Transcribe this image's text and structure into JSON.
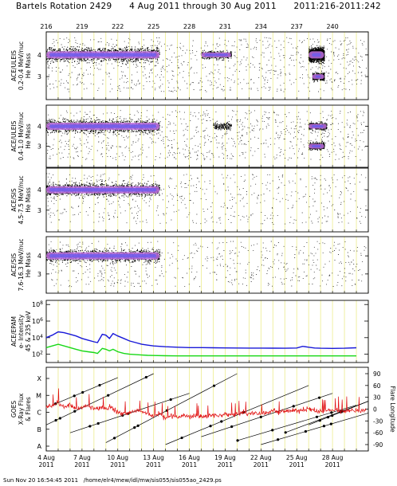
{
  "title": {
    "rotation": "Bartels Rotation 2429",
    "range": "4 Aug 2011 through 30 Aug 2011",
    "doy": "2011:216-2011:242"
  },
  "footer": {
    "timestamp": "Sun Nov 20 16:54:45 2011",
    "path": "/home/elr4/mew/idl/mw/sis055/sis055ao_2429.ps"
  },
  "chart_data": [
    {
      "type": "scatter",
      "panel": "ULEIS 0.2-0.4",
      "ylabel_lines": [
        "ACE/ULEIS",
        "0.2-0.4 MeV/nuc",
        "He Mass"
      ],
      "yticks": [
        "4",
        "3"
      ],
      "top_axis_ticks": [
        "216",
        "219",
        "222",
        "225",
        "228",
        "231",
        "234",
        "237",
        "240"
      ],
      "density_bands": [
        {
          "doy_start": 216.0,
          "doy_end": 225.5,
          "mass": 4.0,
          "level": "high"
        },
        {
          "doy_start": 229.0,
          "doy_end": 231.5,
          "mass": 4.0,
          "level": "medium"
        },
        {
          "doy_start": 238.0,
          "doy_end": 239.3,
          "mass": 4.0,
          "level": "high"
        },
        {
          "doy_start": 238.3,
          "doy_end": 239.3,
          "mass": 3.0,
          "level": "medium"
        }
      ]
    },
    {
      "type": "scatter",
      "panel": "ULEIS 0.4-1.0",
      "ylabel_lines": [
        "ACE/ULEIS",
        "0.4-1.0 MeV/nuc",
        "He Mass"
      ],
      "yticks": [
        "4",
        "3"
      ],
      "density_bands": [
        {
          "doy_start": 216.0,
          "doy_end": 225.5,
          "mass": 4.0,
          "level": "high"
        },
        {
          "doy_start": 230.0,
          "doy_end": 231.5,
          "mass": 4.0,
          "level": "low"
        },
        {
          "doy_start": 238.0,
          "doy_end": 239.5,
          "mass": 4.0,
          "level": "medium"
        },
        {
          "doy_start": 238.0,
          "doy_end": 239.3,
          "mass": 3.0,
          "level": "medium"
        }
      ]
    },
    {
      "type": "scatter",
      "panel": "SIS 4.5-7.5",
      "ylabel_lines": [
        "ACE/SIS",
        "4.5-7.5 MeV/nuc",
        "He Mass"
      ],
      "yticks": [
        "4",
        "3"
      ],
      "density_bands": [
        {
          "doy_start": 216.0,
          "doy_end": 225.5,
          "mass": 4.0,
          "level": "high"
        }
      ]
    },
    {
      "type": "scatter",
      "panel": "SIS 7.6-16.3",
      "ylabel_lines": [
        "ACE/SIS",
        "7.6-16.3 MeV/nuc",
        "He Mass"
      ],
      "yticks": [
        "4",
        "3"
      ],
      "density_bands": [
        {
          "doy_start": 216.0,
          "doy_end": 225.5,
          "mass": 4.0,
          "level": "high"
        }
      ]
    },
    {
      "type": "line",
      "panel": "EPAM",
      "ylabel_lines": [
        "ACE/EPAM",
        "e- Intensity",
        "45 & 235 keV"
      ],
      "yticks": [
        "10^8",
        "10^6",
        "10^4",
        "10^2"
      ],
      "ylim_log10": [
        1,
        8.5
      ],
      "series": [
        {
          "color": "#1818d8",
          "x": [
            216.0,
            216.5,
            217.0,
            217.5,
            218.0,
            218.5,
            219.0,
            219.5,
            220.0,
            220.3,
            220.7,
            221.0,
            221.3,
            221.6,
            222.0,
            222.5,
            223.0,
            223.5,
            224.0,
            224.5,
            225.0,
            225.5,
            226.0,
            227.0,
            228.0,
            229.0,
            230.0,
            231.0,
            232.0,
            233.0,
            234.0,
            235.0,
            236.0,
            237.0,
            237.5,
            238.0,
            238.5,
            239.0,
            240.0,
            241.0,
            242.0
          ],
          "y": [
            4.0,
            4.3,
            4.7,
            4.6,
            4.4,
            4.2,
            3.9,
            3.7,
            3.5,
            3.4,
            4.4,
            4.3,
            3.9,
            4.5,
            4.2,
            3.9,
            3.6,
            3.4,
            3.2,
            3.1,
            3.0,
            2.95,
            2.9,
            2.85,
            2.8,
            2.8,
            2.78,
            2.76,
            2.75,
            2.74,
            2.74,
            2.73,
            2.72,
            2.75,
            2.95,
            2.85,
            2.75,
            2.72,
            2.7,
            2.72,
            2.78
          ]
        },
        {
          "color": "#18d818",
          "x": [
            216.0,
            216.5,
            217.0,
            217.5,
            218.0,
            218.5,
            219.0,
            219.5,
            220.0,
            220.3,
            220.7,
            221.0,
            221.3,
            221.6,
            222.0,
            222.5,
            223.0,
            223.5,
            224.0,
            224.5,
            225.0,
            226.0,
            227.0,
            228.0,
            230.0,
            232.0,
            234.0,
            236.0,
            238.0,
            240.0,
            242.0
          ],
          "y": [
            2.8,
            3.0,
            3.2,
            3.0,
            2.8,
            2.6,
            2.4,
            2.3,
            2.2,
            2.1,
            2.7,
            2.6,
            2.4,
            2.6,
            2.3,
            2.1,
            2.0,
            1.95,
            1.9,
            1.87,
            1.85,
            1.82,
            1.8,
            1.8,
            1.8,
            1.8,
            1.8,
            1.8,
            1.8,
            1.8,
            1.8
          ]
        }
      ]
    },
    {
      "type": "line",
      "panel": "GOES X-ray flux & flare longitude",
      "ylabel_lines": [
        "GOES",
        "X-Ray Flux",
        "& Flares"
      ],
      "left_ticks": [
        "X",
        "M",
        "C",
        "B",
        "A"
      ],
      "right_label": "Flare Longitude",
      "right_ticks": [
        "90",
        "60",
        "30",
        "0",
        "-30",
        "-60",
        "-90"
      ],
      "series": [
        {
          "name": "xray-flux",
          "color": "#e01010",
          "x": [
            216,
            216.5,
            217,
            217.5,
            218,
            218.5,
            219,
            219.5,
            220,
            220.5,
            221,
            221.5,
            222,
            222.5,
            223,
            223.5,
            224,
            224.5,
            225,
            225.5,
            226,
            226.5,
            227,
            227.5,
            228,
            228.5,
            229,
            229.5,
            230,
            230.5,
            231,
            231.5,
            232,
            232.5,
            233,
            233.5,
            234,
            234.5,
            235,
            235.5,
            236,
            236.5,
            237,
            237.5,
            238,
            238.5,
            239,
            239.5,
            240,
            240.5,
            241,
            241.5,
            242
          ],
          "y": [
            -5.7,
            -5.6,
            -5.4,
            -5.7,
            -5.6,
            -5.8,
            -5.7,
            -5.6,
            -5.8,
            -5.7,
            -5.8,
            -5.7,
            -6.0,
            -6.1,
            -6.0,
            -5.9,
            -6.0,
            -6.1,
            -6.2,
            -6.1,
            -6.3,
            -6.2,
            -6.3,
            -6.2,
            -6.3,
            -6.2,
            -6.3,
            -6.25,
            -6.2,
            -6.15,
            -6.1,
            -6.2,
            -6.1,
            -6.0,
            -6.1,
            -6.0,
            -6.1,
            -6.0,
            -5.9,
            -6.0,
            -5.9,
            -5.95,
            -5.9,
            -5.85,
            -5.8,
            -5.9,
            -5.95,
            -5.9,
            -5.85,
            -5.9,
            -5.95,
            -5.9,
            -5.9
          ]
        }
      ]
    }
  ],
  "bottom_axis": [
    {
      "line1": "4 Aug",
      "line2": "2011"
    },
    {
      "line1": "7 Aug",
      "line2": "2011"
    },
    {
      "line1": "10 Aug",
      "line2": "2011"
    },
    {
      "line1": "13 Aug",
      "line2": "2011"
    },
    {
      "line1": "16 Aug",
      "line2": "2011"
    },
    {
      "line1": "19 Aug",
      "line2": "2011"
    },
    {
      "line1": "22 Aug",
      "line2": "2011"
    },
    {
      "line1": "25 Aug",
      "line2": "2011"
    },
    {
      "line1": "28 Aug",
      "line2": "2011"
    }
  ]
}
